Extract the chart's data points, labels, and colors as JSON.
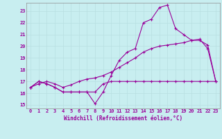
{
  "xlabel": "Windchill (Refroidissement éolien,°C)",
  "bg_color": "#c8eef0",
  "grid_color": "#b8dfe1",
  "line_color": "#990099",
  "xlim": [
    -0.5,
    23.5
  ],
  "ylim": [
    14.7,
    23.7
  ],
  "xticks": [
    0,
    1,
    2,
    3,
    4,
    5,
    6,
    7,
    8,
    9,
    10,
    11,
    12,
    13,
    14,
    15,
    16,
    17,
    18,
    19,
    20,
    21,
    22,
    23
  ],
  "yticks": [
    15,
    16,
    17,
    18,
    19,
    20,
    21,
    22,
    23
  ],
  "line1_x": [
    0,
    1,
    2,
    3,
    4,
    5,
    6,
    7,
    8,
    9,
    10,
    11,
    12,
    13,
    14,
    15,
    16,
    17,
    18,
    19,
    20,
    21,
    22,
    23
  ],
  "line1_y": [
    16.5,
    17.0,
    16.8,
    16.5,
    16.1,
    16.1,
    16.1,
    16.1,
    16.1,
    16.8,
    17.0,
    17.0,
    17.0,
    17.0,
    17.0,
    17.0,
    17.0,
    17.0,
    17.0,
    17.0,
    17.0,
    17.0,
    17.0,
    17.0
  ],
  "line2_x": [
    0,
    1,
    2,
    3,
    4,
    5,
    6,
    7,
    8,
    9,
    10,
    11,
    12,
    13,
    14,
    15,
    16,
    17,
    18,
    19,
    20,
    21,
    22,
    23
  ],
  "line2_y": [
    16.5,
    17.0,
    16.8,
    16.5,
    16.1,
    16.1,
    16.1,
    16.1,
    15.1,
    16.1,
    17.5,
    18.8,
    19.5,
    19.8,
    22.0,
    22.3,
    23.3,
    23.5,
    21.5,
    21.0,
    20.5,
    20.6,
    19.8,
    17.0
  ],
  "line3_x": [
    0,
    1,
    2,
    3,
    4,
    5,
    6,
    7,
    8,
    9,
    10,
    11,
    12,
    13,
    14,
    15,
    16,
    17,
    18,
    19,
    20,
    21,
    22,
    23
  ],
  "line3_y": [
    16.5,
    16.8,
    17.0,
    16.8,
    16.5,
    16.7,
    17.0,
    17.2,
    17.3,
    17.5,
    17.8,
    18.2,
    18.6,
    19.0,
    19.5,
    19.8,
    20.0,
    20.1,
    20.2,
    20.3,
    20.5,
    20.5,
    20.1,
    17.0
  ],
  "tick_fontsize": 5,
  "xlabel_fontsize": 5.5,
  "marker_size": 3,
  "linewidth": 0.8
}
